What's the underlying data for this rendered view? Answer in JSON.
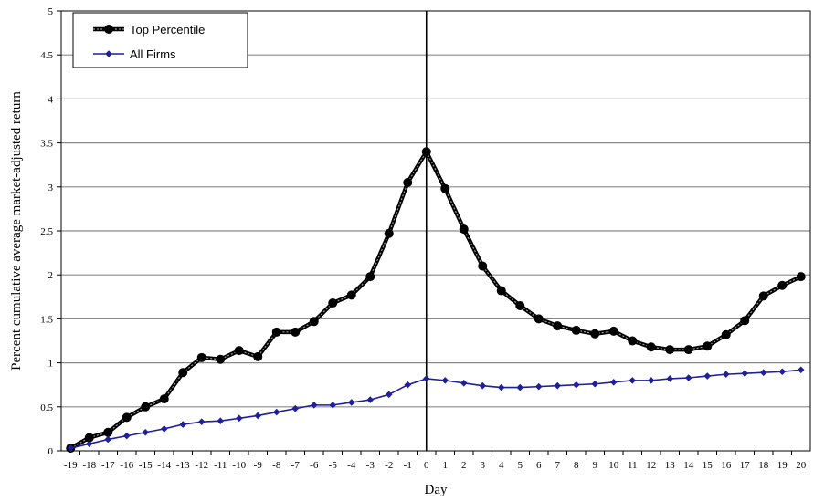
{
  "chart_data": {
    "type": "line",
    "xlabel": "Day",
    "ylabel": "Percent cumulative average market-adjusted return",
    "ylim": [
      0,
      5
    ],
    "y_ticks": [
      "0",
      "0.5",
      "1",
      "1.5",
      "2",
      "2.5",
      "3",
      "3.5",
      "4",
      "4.5",
      "5"
    ],
    "x": [
      -19,
      -18,
      -17,
      -16,
      -15,
      -14,
      -13,
      -12,
      -11,
      -10,
      -9,
      -8,
      -7,
      -6,
      -5,
      -4,
      -3,
      -2,
      -1,
      0,
      1,
      2,
      3,
      4,
      5,
      6,
      7,
      8,
      9,
      10,
      11,
      12,
      13,
      14,
      15,
      16,
      17,
      18,
      19,
      20
    ],
    "grid": "horizontal",
    "event_line_x": 0,
    "legend_position": "top-left",
    "series": [
      {
        "name": "Top Percentile",
        "color": "#000000",
        "marker": "circle",
        "values": [
          0.03,
          0.15,
          0.21,
          0.38,
          0.5,
          0.59,
          0.89,
          1.06,
          1.04,
          1.14,
          1.07,
          1.35,
          1.35,
          1.47,
          1.68,
          1.77,
          1.98,
          2.47,
          3.05,
          3.4,
          2.98,
          2.52,
          2.1,
          1.82,
          1.65,
          1.5,
          1.42,
          1.37,
          1.33,
          1.36,
          1.25,
          1.18,
          1.15,
          1.15,
          1.19,
          1.32,
          1.48,
          1.76,
          1.88,
          1.98
        ]
      },
      {
        "name": "All Firms",
        "color": "#1f1f99",
        "marker": "diamond",
        "values": [
          0.03,
          0.08,
          0.13,
          0.17,
          0.21,
          0.25,
          0.3,
          0.33,
          0.34,
          0.37,
          0.4,
          0.44,
          0.48,
          0.52,
          0.52,
          0.55,
          0.58,
          0.64,
          0.75,
          0.82,
          0.8,
          0.77,
          0.74,
          0.72,
          0.72,
          0.73,
          0.74,
          0.75,
          0.76,
          0.78,
          0.8,
          0.8,
          0.82,
          0.83,
          0.85,
          0.87,
          0.88,
          0.89,
          0.9,
          0.92
        ]
      }
    ]
  }
}
